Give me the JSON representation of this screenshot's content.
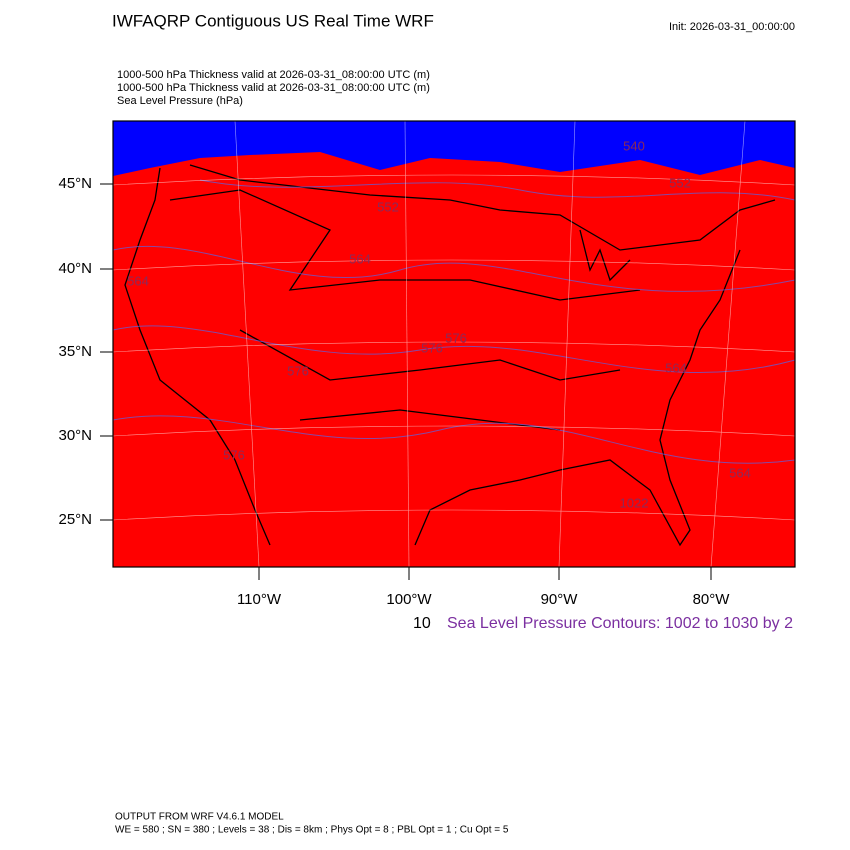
{
  "header": {
    "title": "IWFAQRP Contiguous US Real Time WRF",
    "init": "Init: 2026-03-31_00:00:00",
    "fields": [
      "1000-500 hPa Thickness valid at 2026-03-31_08:00:00 UTC   (m)",
      "1000-500 hPa Thickness valid at 2026-03-31_08:00:00 UTC   (m)",
      "Sea Level Pressure   (hPa)"
    ]
  },
  "map": {
    "lat_labels": [
      "45°N",
      "40°N",
      "35°N",
      "30°N",
      "25°N"
    ],
    "lon_labels": [
      "110°W",
      "100°W",
      "90°W",
      "80°W"
    ],
    "contour_labels": [
      "540",
      "552",
      "552",
      "564",
      "564",
      "576",
      "576",
      "576",
      "564",
      "564",
      "576",
      "1022"
    ]
  },
  "legend": {
    "prefix": "10",
    "text": "Sea Level Pressure Contours: 1002 to 1030 by 2"
  },
  "footer": {
    "line1": "OUTPUT FROM WRF V4.6.1 MODEL",
    "line2": "WE = 580 ; SN = 380 ; Levels = 38 ; Dis = 8km ; Phys Opt = 8 ; PBL Opt = 1 ; Cu Opt = 5"
  }
}
